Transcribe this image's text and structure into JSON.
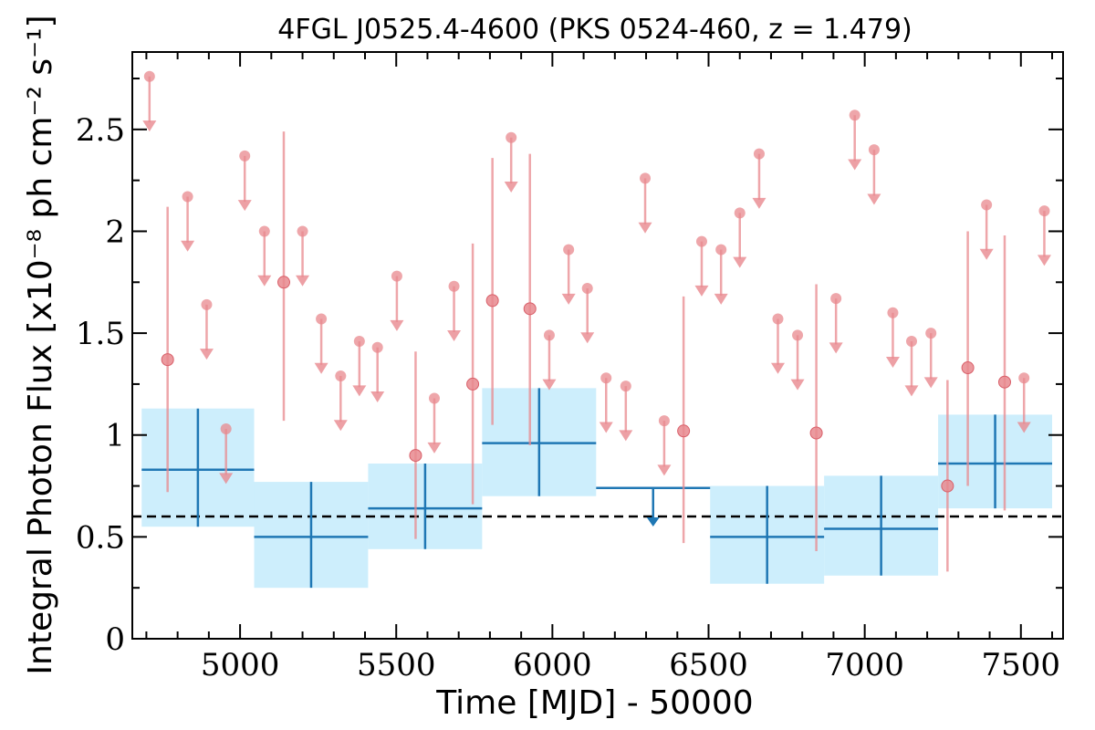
{
  "chart_data": {
    "type": "scatter",
    "title": "4FGL J0525.4-4600 (PKS 0524-460, z = 1.479)",
    "xlabel": "Time [MJD] - 50000",
    "ylabel": "Integral Photon Flux [x10⁻⁸ ph cm⁻² s⁻¹]",
    "xlim": [
      4655,
      7635
    ],
    "ylim": [
      0,
      2.88
    ],
    "xticks": [
      5000,
      5500,
      6000,
      6500,
      7000,
      7500
    ],
    "yticks": [
      0,
      0.5,
      1,
      1.5,
      2,
      2.5
    ],
    "ytick_labels": [
      "0",
      "0.5",
      "1",
      "1.5",
      "2",
      "2.5"
    ],
    "reference_level": 0.6,
    "colors": {
      "fine": "#e8888e",
      "coarse": "#1f77b4",
      "coarse_fill": "#cdeefc",
      "reference": "#000000"
    },
    "series": [
      {
        "points": [
          {
            "x": 4768,
            "y": 1.37,
            "ylo": 0.72,
            "yhi": 2.12
          },
          {
            "x": 5140,
            "y": 1.75,
            "ylo": 1.07,
            "yhi": 2.49
          },
          {
            "x": 5562,
            "y": 0.9,
            "ylo": 0.49,
            "yhi": 1.41
          },
          {
            "x": 5745,
            "y": 1.25,
            "ylo": 0.66,
            "yhi": 1.94
          },
          {
            "x": 5808,
            "y": 1.66,
            "ylo": 1.05,
            "yhi": 2.36
          },
          {
            "x": 5928,
            "y": 1.62,
            "ylo": 0.95,
            "yhi": 2.38
          },
          {
            "x": 6420,
            "y": 1.02,
            "ylo": 0.47,
            "yhi": 1.68
          },
          {
            "x": 6845,
            "y": 1.01,
            "ylo": 0.43,
            "yhi": 1.74
          },
          {
            "x": 7265,
            "y": 0.75,
            "ylo": 0.33,
            "yhi": 1.27
          },
          {
            "x": 7330,
            "y": 1.33,
            "ylo": 0.75,
            "yhi": 2.0
          },
          {
            "x": 7448,
            "y": 1.26,
            "ylo": 0.63,
            "yhi": 1.98
          }
        ],
        "upper_limits": [
          {
            "x": 4710,
            "y": 2.76
          },
          {
            "x": 4832,
            "y": 2.17
          },
          {
            "x": 4893,
            "y": 1.64
          },
          {
            "x": 4955,
            "y": 1.03
          },
          {
            "x": 5015,
            "y": 2.37
          },
          {
            "x": 5078,
            "y": 2.0
          },
          {
            "x": 5200,
            "y": 2.0
          },
          {
            "x": 5260,
            "y": 1.57
          },
          {
            "x": 5322,
            "y": 1.29
          },
          {
            "x": 5382,
            "y": 1.46
          },
          {
            "x": 5440,
            "y": 1.43
          },
          {
            "x": 5502,
            "y": 1.78
          },
          {
            "x": 5622,
            "y": 1.18
          },
          {
            "x": 5685,
            "y": 1.73
          },
          {
            "x": 5868,
            "y": 2.46
          },
          {
            "x": 5990,
            "y": 1.49
          },
          {
            "x": 6052,
            "y": 1.91
          },
          {
            "x": 6112,
            "y": 1.72
          },
          {
            "x": 6172,
            "y": 1.28
          },
          {
            "x": 6235,
            "y": 1.24
          },
          {
            "x": 6297,
            "y": 2.26
          },
          {
            "x": 6358,
            "y": 1.07
          },
          {
            "x": 6478,
            "y": 1.95
          },
          {
            "x": 6540,
            "y": 1.91
          },
          {
            "x": 6600,
            "y": 2.09
          },
          {
            "x": 6662,
            "y": 2.38
          },
          {
            "x": 6722,
            "y": 1.57
          },
          {
            "x": 6785,
            "y": 1.49
          },
          {
            "x": 6908,
            "y": 1.67
          },
          {
            "x": 6968,
            "y": 2.57
          },
          {
            "x": 7030,
            "y": 2.4
          },
          {
            "x": 7090,
            "y": 1.6
          },
          {
            "x": 7150,
            "y": 1.46
          },
          {
            "x": 7212,
            "y": 1.5
          },
          {
            "x": 7390,
            "y": 2.13
          },
          {
            "x": 7510,
            "y": 1.28
          },
          {
            "x": 7575,
            "y": 2.1
          }
        ]
      },
      {
        "bins": [
          {
            "x0": 4685,
            "x1": 5045,
            "y": 0.83,
            "ylo": 0.55,
            "yhi": 1.13
          },
          {
            "x0": 5045,
            "x1": 5410,
            "y": 0.5,
            "ylo": 0.25,
            "yhi": 0.77
          },
          {
            "x0": 5410,
            "x1": 5775,
            "y": 0.64,
            "ylo": 0.44,
            "yhi": 0.86
          },
          {
            "x0": 5775,
            "x1": 6140,
            "y": 0.96,
            "ylo": 0.7,
            "yhi": 1.23
          },
          {
            "x0": 6505,
            "x1": 6870,
            "y": 0.5,
            "ylo": 0.27,
            "yhi": 0.75
          },
          {
            "x0": 6870,
            "x1": 7235,
            "y": 0.54,
            "ylo": 0.31,
            "yhi": 0.8
          },
          {
            "x0": 7235,
            "x1": 7600,
            "y": 0.86,
            "ylo": 0.64,
            "yhi": 1.1
          }
        ],
        "upper_limit_bins": [
          {
            "x0": 6140,
            "x1": 6505,
            "y": 0.74
          }
        ]
      }
    ]
  }
}
